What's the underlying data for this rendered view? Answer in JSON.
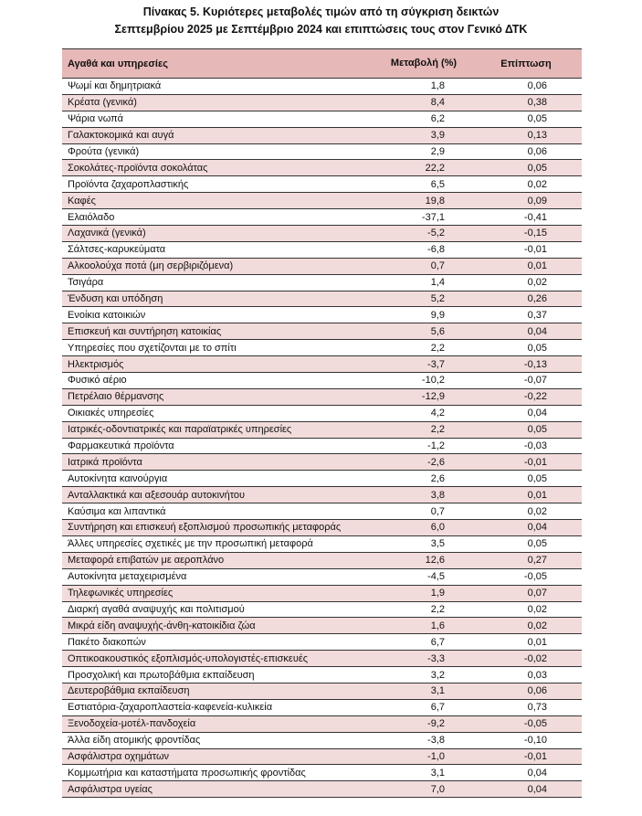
{
  "title": {
    "line1": "Πίνακας  5. Κυριότερες μεταβολές τιμών από τη σύγκριση δεικτών",
    "line2": "Σεπτεμβρίου 2025 με Σεπτέμβριο 2024 και επιπτώσεις τους στον Γενικό ΔΤΚ"
  },
  "table": {
    "headers": {
      "name": "Αγαθά και υπηρεσίες",
      "change": "Μεταβολή (%)",
      "impact": "Επίπτωση"
    },
    "colors": {
      "header": "#e6b8b7",
      "stripe": "#f2dcdb"
    },
    "rows": [
      {
        "name": "Ψωμί και δημητριακά",
        "change": "1,8",
        "impact": "0,06"
      },
      {
        "name": "Κρέατα  (γενικά)",
        "change": "8,4",
        "impact": "0,38"
      },
      {
        "name": "Ψάρια νωπά",
        "change": "6,2",
        "impact": "0,05"
      },
      {
        "name": "Γαλακτοκομικά και αυγά",
        "change": "3,9",
        "impact": "0,13"
      },
      {
        "name": "Φρούτα (γενικά)",
        "change": "2,9",
        "impact": "0,06"
      },
      {
        "name": "Σοκολάτες-προϊόντα σοκολάτας",
        "change": "22,2",
        "impact": "0,05"
      },
      {
        "name": "Προϊόντα ζαχαροπλαστικής",
        "change": "6,5",
        "impact": "0,02"
      },
      {
        "name": "Καφές",
        "change": "19,8",
        "impact": "0,09"
      },
      {
        "name": "Ελαιόλαδο",
        "change": "-37,1",
        "impact": "-0,41"
      },
      {
        "name": "Λαχανικά (γενικά)",
        "change": "-5,2",
        "impact": "-0,15"
      },
      {
        "name": "Σάλτσες-καρυκεύματα",
        "change": "-6,8",
        "impact": "-0,01"
      },
      {
        "name": "Αλκοολούχα ποτά (μη σερβιριζόμενα)",
        "change": "0,7",
        "impact": "0,01"
      },
      {
        "name": "Τσιγάρα",
        "change": "1,4",
        "impact": "0,02"
      },
      {
        "name": "Ένδυση και υπόδηση",
        "change": "5,2",
        "impact": "0,26"
      },
      {
        "name": "Ενοίκια κατοικιών",
        "change": "9,9",
        "impact": "0,37"
      },
      {
        "name": "Επισκευή και συντήρηση κατοικίας",
        "change": "5,6",
        "impact": "0,04"
      },
      {
        "name": "Υπηρεσίες που σχετίζονται με το σπίτι",
        "change": "2,2",
        "impact": "0,05"
      },
      {
        "name": "Ηλεκτρισμός",
        "change": "-3,7",
        "impact": "-0,13"
      },
      {
        "name": "Φυσικό αέριο",
        "change": "-10,2",
        "impact": "-0,07"
      },
      {
        "name": "Πετρέλαιο θέρμανσης",
        "change": "-12,9",
        "impact": "-0,22"
      },
      {
        "name": "Οικιακές υπηρεσίες",
        "change": "4,2",
        "impact": "0,04"
      },
      {
        "name": "Ιατρικές-οδοντιατρικές και παραϊατρικές υπηρεσίες",
        "change": "2,2",
        "impact": "0,05"
      },
      {
        "name": "Φαρμακευτικά προϊόντα",
        "change": "-1,2",
        "impact": "-0,03"
      },
      {
        "name": "Ιατρικά προϊόντα",
        "change": "-2,6",
        "impact": "-0,01"
      },
      {
        "name": "Αυτοκίνητα καινούργια",
        "change": "2,6",
        "impact": "0,05"
      },
      {
        "name": "Ανταλλακτικά και αξεσουάρ αυτοκινήτου",
        "change": "3,8",
        "impact": "0,01"
      },
      {
        "name": "Καύσιμα και λιπαντικά",
        "change": "0,7",
        "impact": "0,02"
      },
      {
        "name": "Συντήρηση και επισκευή εξοπλισμού προσωπικής μεταφοράς",
        "change": "6,0",
        "impact": "0,04"
      },
      {
        "name": "Άλλες υπηρεσίες σχετικές με την προσωπική μεταφορά",
        "change": "3,5",
        "impact": "0,05"
      },
      {
        "name": "Μεταφορά επιβατών με αεροπλάνο",
        "change": "12,6",
        "impact": "0,27"
      },
      {
        "name": "Αυτοκίνητα μεταχειρισμένα",
        "change": "-4,5",
        "impact": "-0,05"
      },
      {
        "name": "Τηλεφωνικές υπηρεσίες",
        "change": "1,9",
        "impact": "0,07"
      },
      {
        "name": "Διαρκή αγαθά αναψυχής και πολιτισμού",
        "change": "2,2",
        "impact": "0,02"
      },
      {
        "name": "Μικρά είδη αναψυχής-άνθη-κατοικίδια ζώα",
        "change": "1,6",
        "impact": "0,02"
      },
      {
        "name": "Πακέτο διακοπών",
        "change": "6,7",
        "impact": "0,01"
      },
      {
        "name": "Οπτικοακουστικός εξοπλισμός-υπολογιστές-επισκευές",
        "change": "-3,3",
        "impact": "-0,02"
      },
      {
        "name": "Προσχολική και πρωτοβάθμια εκπαίδευση",
        "change": "3,2",
        "impact": "0,03"
      },
      {
        "name": "Δευτεροβάθμια εκπαίδευση",
        "change": "3,1",
        "impact": "0,06"
      },
      {
        "name": "Εστιατόρια-ζαχαροπλαστεία-καφενεία-κυλικεία",
        "change": "6,7",
        "impact": "0,73"
      },
      {
        "name": "Ξενοδοχεία-μοτέλ-πανδοχεία",
        "change": "-9,2",
        "impact": "-0,05"
      },
      {
        "name": "Άλλα είδη ατομικής φροντίδας",
        "change": "-3,8",
        "impact": "-0,10"
      },
      {
        "name": "Ασφάλιστρα οχημάτων",
        "change": "-1,0",
        "impact": "-0,01"
      },
      {
        "name": "Κομμωτήρια και καταστήματα προσωπικής φροντίδας",
        "change": "3,1",
        "impact": "0,04"
      },
      {
        "name": "Ασφάλιστρα υγείας",
        "change": "7,0",
        "impact": "0,04"
      }
    ]
  }
}
